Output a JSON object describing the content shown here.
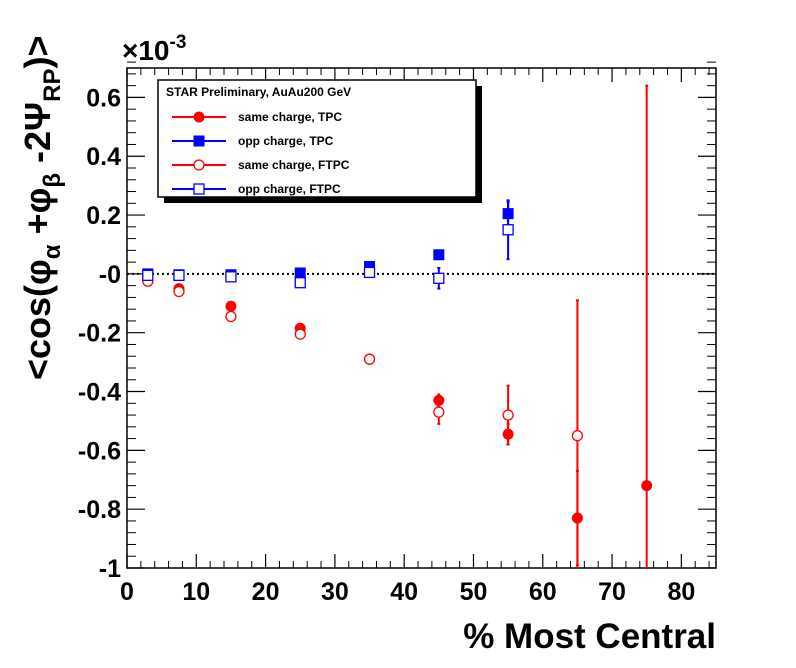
{
  "chart_data": {
    "type": "scatter",
    "title": "",
    "xlabel": "% Most Central",
    "ylabel": "<cos(φα+φβ-2ΨRP)>",
    "ylabel_parts": {
      "open": "<cos(",
      "phi1": "φ",
      "sub1": "α",
      "plus": " +",
      "phi2": "φ",
      "sub2": "β",
      "minus2": " -2",
      "psi": "Ψ",
      "sub3": "RP",
      "close": ")>"
    },
    "y_multiplier": "×10",
    "y_multiplier_exp": "-3",
    "xlim": [
      0,
      85
    ],
    "ylim": [
      -1.0,
      0.7
    ],
    "x_ticks": [
      0,
      10,
      20,
      30,
      40,
      50,
      60,
      70,
      80
    ],
    "x_tick_labels": [
      "0",
      "10",
      "20",
      "30",
      "40",
      "50",
      "60",
      "70",
      "80"
    ],
    "y_ticks": [
      -1.0,
      -0.8,
      -0.6,
      -0.4,
      -0.2,
      0,
      0.2,
      0.4,
      0.6
    ],
    "y_tick_labels": [
      "-1",
      "-0.8",
      "-0.6",
      "-0.4",
      "-0.2",
      "-0",
      "0.2",
      "0.4",
      "0.6"
    ],
    "zero_line": true,
    "legend": {
      "title": "STAR Preliminary, AuAu200 GeV",
      "position": "top-left"
    },
    "series": [
      {
        "name": "same charge, TPC",
        "color": "#ff0000",
        "marker": "filled-circle",
        "points": [
          {
            "x": 3,
            "y": -0.01,
            "err": 0.01
          },
          {
            "x": 7.5,
            "y": -0.05,
            "err": 0.01
          },
          {
            "x": 15,
            "y": -0.11,
            "err": 0.01
          },
          {
            "x": 25,
            "y": -0.185,
            "err": 0.01
          },
          {
            "x": 35,
            "y": -0.29,
            "err": 0.015
          },
          {
            "x": 45,
            "y": -0.43,
            "err": 0.02
          },
          {
            "x": 55,
            "y": -0.545,
            "err": 0.035
          },
          {
            "x": 65,
            "y": -0.83,
            "err": 0.16
          },
          {
            "x": 75,
            "y": -0.72,
            "err": 1.36
          }
        ]
      },
      {
        "name": "opp charge, TPC",
        "color": "#0000ff",
        "marker": "filled-square",
        "points": [
          {
            "x": 3,
            "y": 0.0,
            "err": 0.005
          },
          {
            "x": 7.5,
            "y": -0.003,
            "err": 0.005
          },
          {
            "x": 15,
            "y": -0.003,
            "err": 0.005
          },
          {
            "x": 25,
            "y": 0.003,
            "err": 0.005
          },
          {
            "x": 35,
            "y": 0.025,
            "err": 0.01
          },
          {
            "x": 45,
            "y": 0.065,
            "err": 0.01
          },
          {
            "x": 55,
            "y": 0.205,
            "err": 0.04
          }
        ]
      },
      {
        "name": "same charge, FTPC",
        "color": "#ff0000",
        "marker": "open-circle",
        "points": [
          {
            "x": 3,
            "y": -0.025,
            "err": 0.01
          },
          {
            "x": 7.5,
            "y": -0.06,
            "err": 0.01
          },
          {
            "x": 15,
            "y": -0.145,
            "err": 0.01
          },
          {
            "x": 25,
            "y": -0.205,
            "err": 0.01
          },
          {
            "x": 35,
            "y": -0.29,
            "err": 0.015
          },
          {
            "x": 45,
            "y": -0.47,
            "err": 0.04
          },
          {
            "x": 55,
            "y": -0.48,
            "err": 0.1
          },
          {
            "x": 65,
            "y": -0.55,
            "err": 0.46
          }
        ]
      },
      {
        "name": "opp charge, FTPC",
        "color": "#0000ff",
        "marker": "open-square",
        "points": [
          {
            "x": 3,
            "y": -0.005,
            "err": 0.01
          },
          {
            "x": 7.5,
            "y": -0.005,
            "err": 0.01
          },
          {
            "x": 15,
            "y": -0.01,
            "err": 0.01
          },
          {
            "x": 25,
            "y": -0.03,
            "err": 0.01
          },
          {
            "x": 35,
            "y": 0.005,
            "err": 0.015
          },
          {
            "x": 45,
            "y": -0.015,
            "err": 0.035
          },
          {
            "x": 55,
            "y": 0.15,
            "err": 0.1
          }
        ]
      }
    ]
  }
}
